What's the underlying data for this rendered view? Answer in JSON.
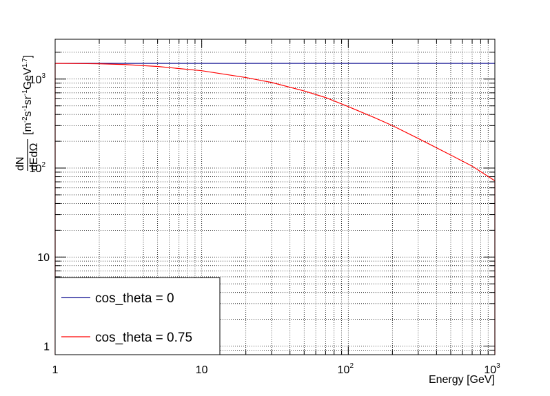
{
  "chart_data": {
    "type": "line",
    "xscale": "log",
    "yscale": "log",
    "xlim": [
      1,
      1000
    ],
    "ylim": [
      0.8,
      2800
    ],
    "grid": true,
    "xlabel": "Energy [GeV]",
    "ylabel": {
      "numerator": "dN",
      "denominator": "dEdΩ",
      "units_prefix": "[m",
      "units_exp1": "-2",
      "units_mid1": "s",
      "units_exp2": "-1",
      "units_mid2": "sr",
      "units_exp3": "-1",
      "units_mid3": "GeV",
      "units_exp4": "1.7",
      "units_suffix": "]"
    },
    "x_ticks": [
      {
        "value": 1,
        "base": "1",
        "exp": ""
      },
      {
        "value": 10,
        "base": "10",
        "exp": ""
      },
      {
        "value": 100,
        "base": "10",
        "exp": "2"
      },
      {
        "value": 1000,
        "base": "10",
        "exp": "3"
      }
    ],
    "y_ticks": [
      {
        "value": 1,
        "base": "1",
        "exp": ""
      },
      {
        "value": 10,
        "base": "10",
        "exp": ""
      },
      {
        "value": 100,
        "base": "10",
        "exp": "2"
      },
      {
        "value": 1000,
        "base": "10",
        "exp": "3"
      }
    ],
    "legend_position": "bottom-left",
    "series": [
      {
        "name": "cos_theta = 0",
        "color": "#00008b",
        "x": [
          1,
          1000
        ],
        "y": [
          1500,
          1500
        ],
        "drop_to_floor_at_end": false
      },
      {
        "name": "cos_theta = 0.75",
        "color": "#ff0000",
        "x": [
          1,
          2,
          3,
          5,
          10,
          20,
          30,
          50,
          70,
          100,
          150,
          200,
          300,
          500,
          700,
          1000
        ],
        "y": [
          1500,
          1485,
          1455,
          1385,
          1240,
          1040,
          915,
          735,
          620,
          490,
          370,
          300,
          215,
          140,
          105,
          72
        ],
        "drop_to_floor_at_end": true
      }
    ]
  }
}
